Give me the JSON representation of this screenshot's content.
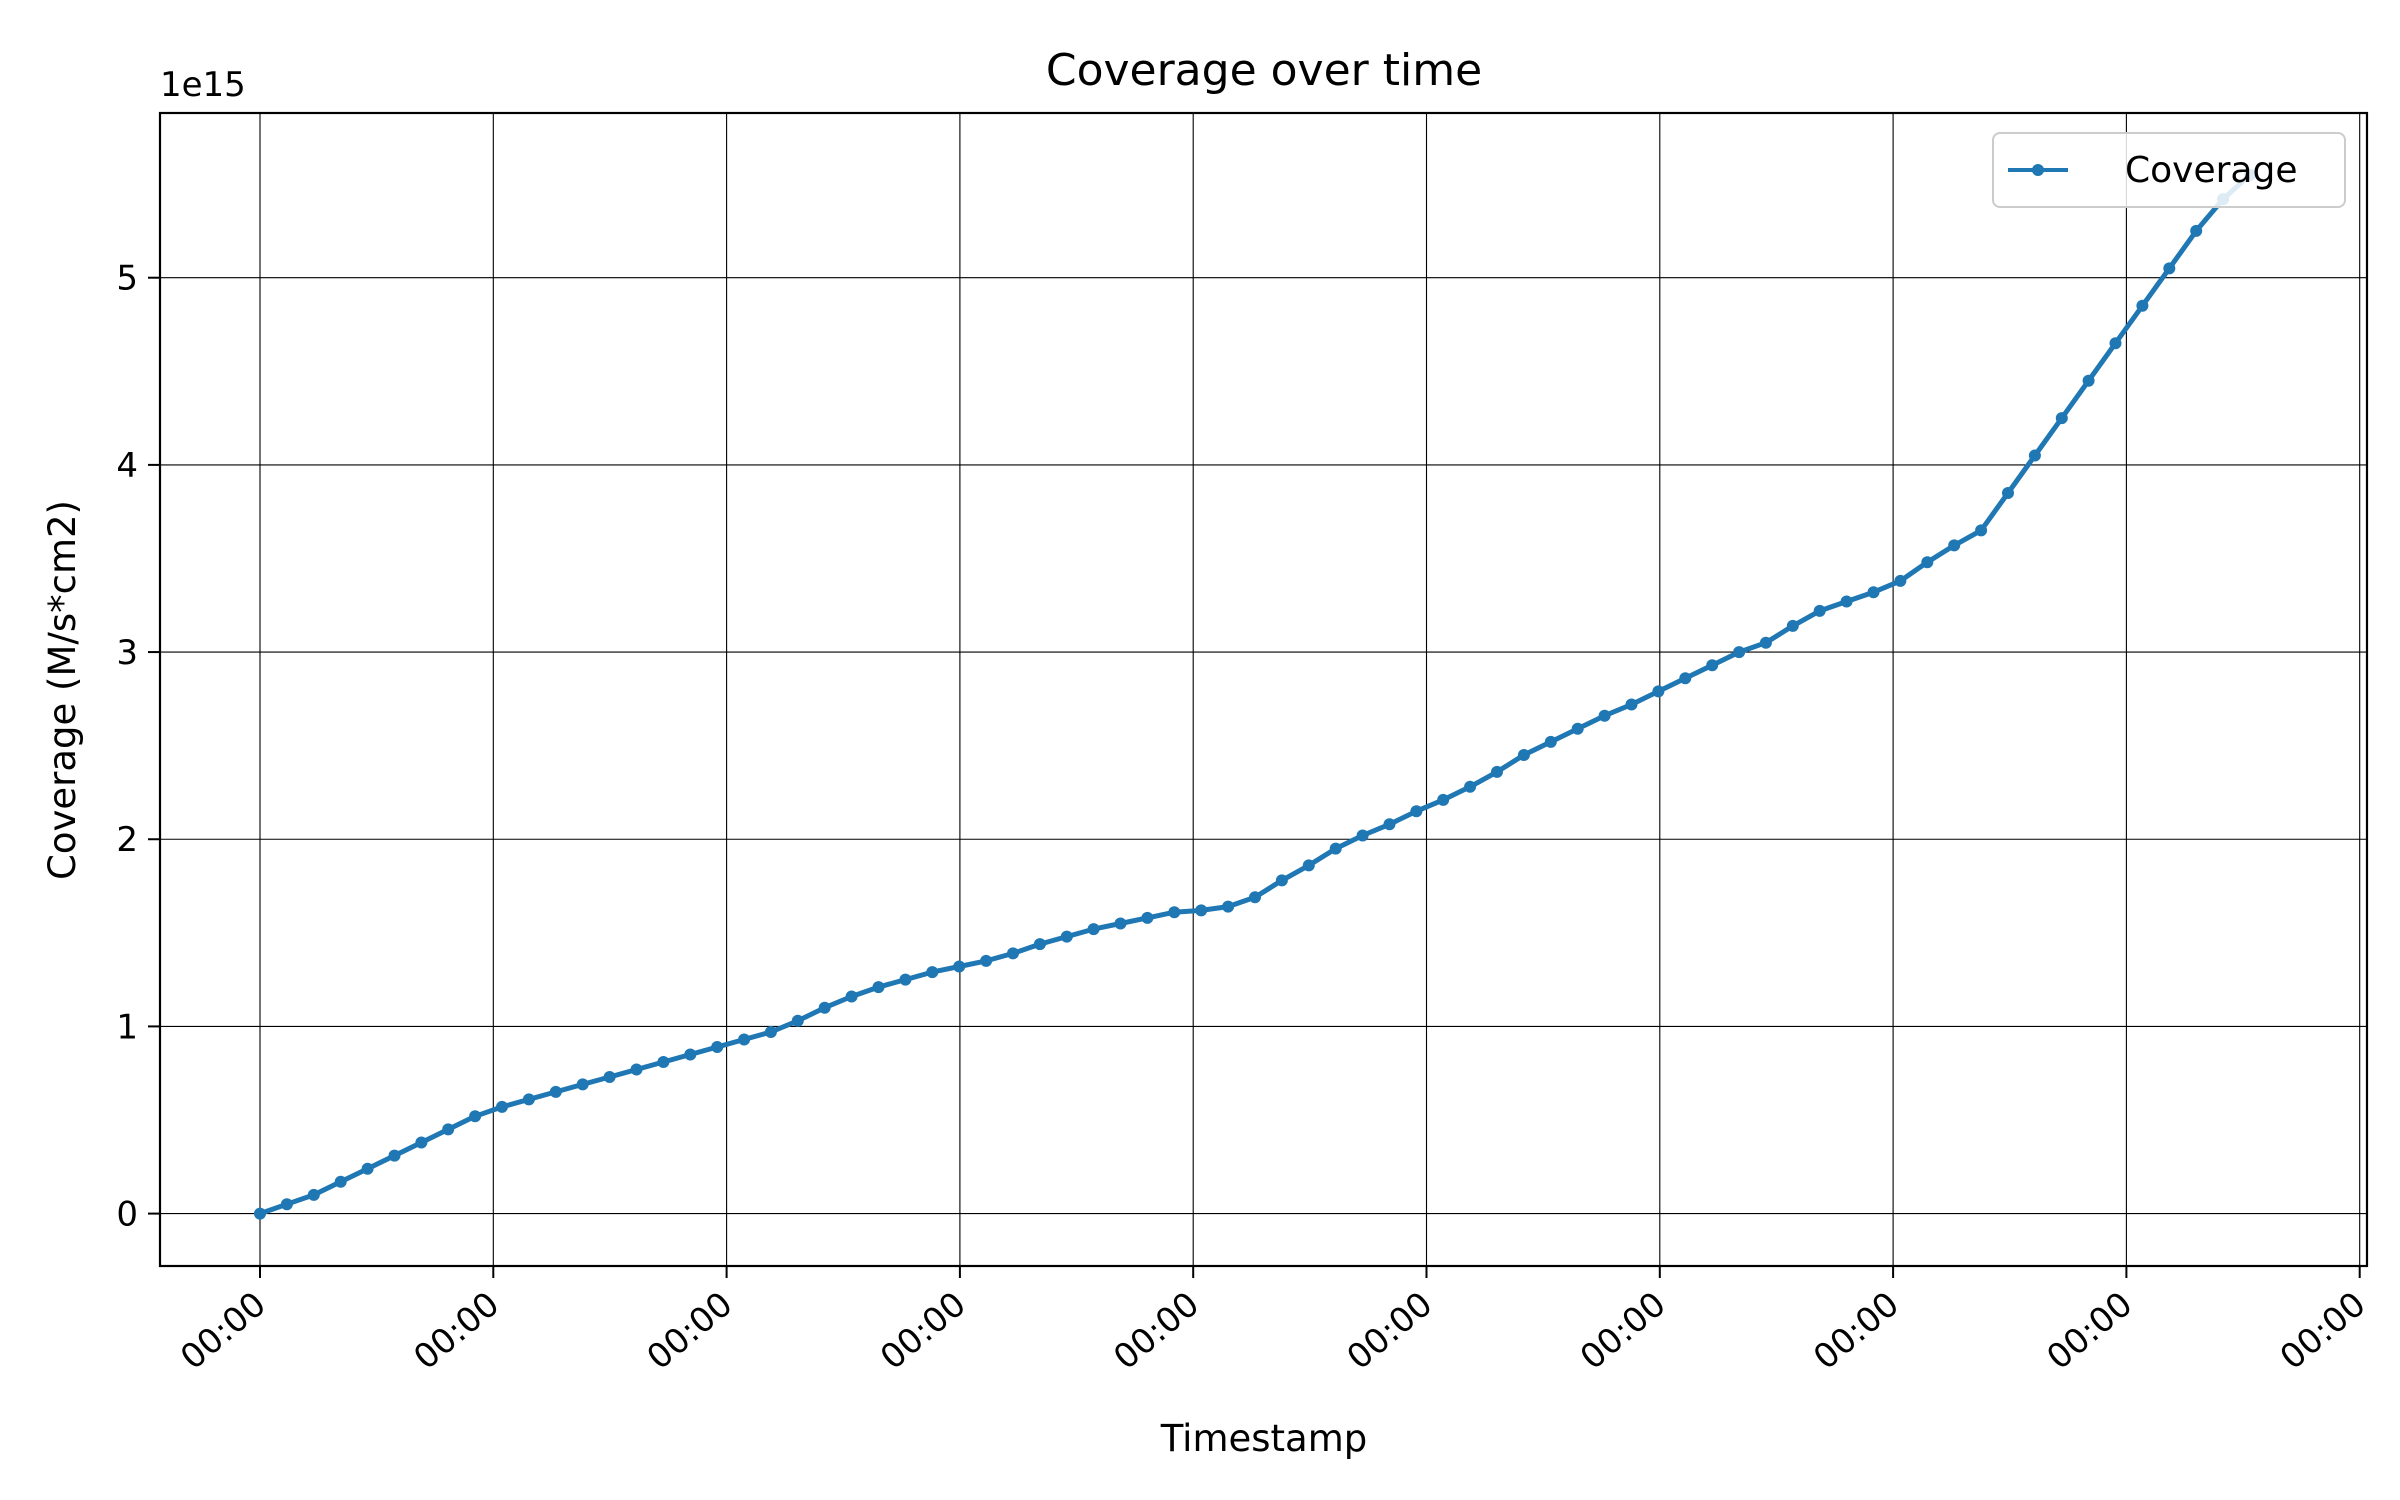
{
  "chart_data": {
    "type": "line",
    "title": "Coverage over time",
    "xlabel": "Timestamp",
    "ylabel": "Coverage (M/s*cm2)",
    "y_offset_label": "1e15",
    "y_scale_factor": 1000000000000000.0,
    "ylim": [
      -0.28,
      5.88
    ],
    "y_ticks": [
      0,
      1,
      2,
      3,
      4,
      5
    ],
    "y_tick_labels": [
      "0",
      "1",
      "2",
      "3",
      "4",
      "5"
    ],
    "x_tick_labels": [
      "00:00",
      "00:00",
      "00:00",
      "00:00",
      "00:00",
      "00:00",
      "00:00",
      "00:00",
      "00:00",
      "00:00"
    ],
    "grid": true,
    "legend_position": "top-right",
    "color": "#1f77b4",
    "series": [
      {
        "name": "Coverage",
        "marker": "dot",
        "values": [
          0.0,
          0.05,
          0.1,
          0.17,
          0.24,
          0.31,
          0.38,
          0.45,
          0.52,
          0.57,
          0.61,
          0.65,
          0.69,
          0.73,
          0.77,
          0.81,
          0.85,
          0.89,
          0.93,
          0.97,
          1.03,
          1.1,
          1.16,
          1.21,
          1.25,
          1.29,
          1.32,
          1.35,
          1.39,
          1.44,
          1.48,
          1.52,
          1.55,
          1.58,
          1.61,
          1.62,
          1.64,
          1.69,
          1.78,
          1.86,
          1.95,
          2.02,
          2.08,
          2.15,
          2.21,
          2.28,
          2.36,
          2.45,
          2.52,
          2.59,
          2.66,
          2.72,
          2.79,
          2.86,
          2.93,
          3.0,
          3.05,
          3.14,
          3.22,
          3.27,
          3.32,
          3.38,
          3.48,
          3.57,
          3.65,
          3.85,
          4.05,
          4.25,
          4.45,
          4.65,
          4.85,
          5.05,
          5.25,
          5.42,
          5.55
        ]
      }
    ]
  }
}
